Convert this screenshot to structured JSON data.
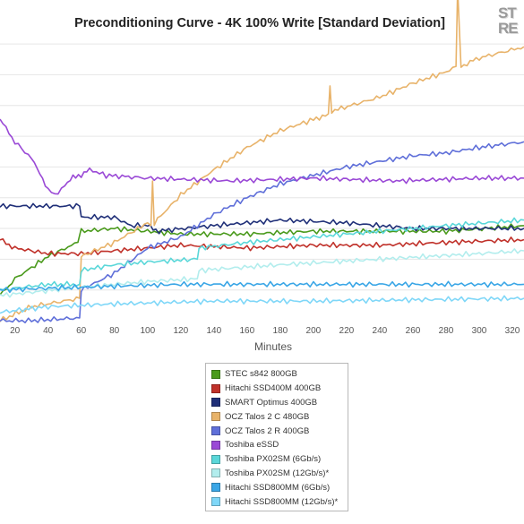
{
  "chart_data": {
    "type": "line",
    "title": "Preconditioning Curve - 4K 100% Write [Standard Deviation]",
    "xlabel": "Minutes",
    "ylabel": "",
    "xlim": [
      11,
      327
    ],
    "ylim": [
      0,
      10
    ],
    "x_ticks": [
      20,
      40,
      60,
      80,
      100,
      120,
      140,
      160,
      180,
      200,
      220,
      240,
      260,
      280,
      300,
      320
    ],
    "grid": true,
    "legend_position": "bottom",
    "series": [
      {
        "name": "STEC s842 800GB",
        "color": "#4a9a1c",
        "points": [
          [
            11,
            0.9
          ],
          [
            20,
            1.5
          ],
          [
            40,
            2.3
          ],
          [
            58,
            2.8
          ],
          [
            60,
            3.2
          ],
          [
            80,
            3.3
          ],
          [
            120,
            3.1
          ],
          [
            160,
            3.1
          ],
          [
            200,
            3.2
          ],
          [
            240,
            3.2
          ],
          [
            280,
            3.2
          ],
          [
            327,
            3.4
          ]
        ]
      },
      {
        "name": "Hitachi SSD400M 400GB",
        "color": "#c0312a",
        "points": [
          [
            11,
            2.9
          ],
          [
            20,
            2.6
          ],
          [
            40,
            2.4
          ],
          [
            60,
            2.4
          ],
          [
            80,
            2.5
          ],
          [
            120,
            2.7
          ],
          [
            160,
            2.6
          ],
          [
            200,
            2.7
          ],
          [
            240,
            2.7
          ],
          [
            280,
            2.8
          ],
          [
            327,
            2.9
          ]
        ]
      },
      {
        "name": "SMART Optimus 400GB",
        "color": "#1f2f78",
        "points": [
          [
            11,
            4.1
          ],
          [
            59,
            4.1
          ],
          [
            60,
            3.7
          ],
          [
            80,
            3.7
          ],
          [
            90,
            3.4
          ],
          [
            100,
            3.4
          ],
          [
            105,
            3.2
          ],
          [
            140,
            3.4
          ],
          [
            180,
            3.6
          ],
          [
            220,
            3.5
          ],
          [
            260,
            3.3
          ],
          [
            300,
            3.3
          ],
          [
            327,
            3.3
          ]
        ]
      },
      {
        "name": "OCZ Talos 2 C 480GB",
        "color": "#e8b36a",
        "points": [
          [
            11,
            0.0
          ],
          [
            30,
            0.5
          ],
          [
            59,
            0.8
          ],
          [
            60,
            2.3
          ],
          [
            80,
            2.8
          ],
          [
            100,
            3.5
          ],
          [
            102,
            3.4
          ],
          [
            103,
            5.0
          ],
          [
            104,
            3.5
          ],
          [
            120,
            4.5
          ],
          [
            140,
            5.4
          ],
          [
            160,
            6.2
          ],
          [
            180,
            6.8
          ],
          [
            200,
            7.2
          ],
          [
            209,
            7.4
          ],
          [
            210,
            8.4
          ],
          [
            211,
            7.5
          ],
          [
            240,
            8.0
          ],
          [
            260,
            8.5
          ],
          [
            280,
            8.9
          ],
          [
            286,
            9.1
          ],
          [
            287,
            11.9
          ],
          [
            289,
            9.1
          ],
          [
            300,
            9.4
          ],
          [
            327,
            9.8
          ]
        ]
      },
      {
        "name": "OCZ Talos 2 R 400GB",
        "color": "#5f6fd9",
        "points": [
          [
            11,
            0.0
          ],
          [
            30,
            0.0
          ],
          [
            59,
            0.1
          ],
          [
            60,
            1.1
          ],
          [
            80,
            1.7
          ],
          [
            100,
            2.6
          ],
          [
            120,
            3.0
          ],
          [
            140,
            3.8
          ],
          [
            160,
            4.4
          ],
          [
            180,
            4.9
          ],
          [
            200,
            5.2
          ],
          [
            220,
            5.5
          ],
          [
            240,
            5.7
          ],
          [
            260,
            5.9
          ],
          [
            280,
            6.0
          ],
          [
            300,
            6.2
          ],
          [
            327,
            6.4
          ]
        ]
      },
      {
        "name": "Toshiba eSSD",
        "color": "#9a49d6",
        "points": [
          [
            11,
            7.2
          ],
          [
            20,
            6.4
          ],
          [
            30,
            5.8
          ],
          [
            35,
            5.3
          ],
          [
            40,
            4.7
          ],
          [
            44,
            4.5
          ],
          [
            50,
            4.8
          ],
          [
            55,
            5.2
          ],
          [
            60,
            5.2
          ],
          [
            65,
            5.4
          ],
          [
            75,
            5.2
          ],
          [
            100,
            5.1
          ],
          [
            150,
            5.0
          ],
          [
            200,
            5.1
          ],
          [
            250,
            5.0
          ],
          [
            300,
            5.1
          ],
          [
            327,
            5.1
          ]
        ]
      },
      {
        "name": "Toshiba PX02SM (6Gb/s)",
        "color": "#5ad7d9",
        "points": [
          [
            11,
            1.1
          ],
          [
            40,
            1.3
          ],
          [
            59,
            1.3
          ],
          [
            60,
            1.8
          ],
          [
            80,
            2.0
          ],
          [
            100,
            2.1
          ],
          [
            130,
            2.2
          ],
          [
            131,
            2.6
          ],
          [
            160,
            2.8
          ],
          [
            200,
            3.0
          ],
          [
            240,
            3.2
          ],
          [
            280,
            3.4
          ],
          [
            327,
            3.6
          ]
        ]
      },
      {
        "name": "Toshiba PX02SM (12Gb/s)*",
        "color": "#b2eded",
        "points": [
          [
            11,
            0.9
          ],
          [
            60,
            1.2
          ],
          [
            100,
            1.4
          ],
          [
            130,
            1.5
          ],
          [
            131,
            1.8
          ],
          [
            180,
            2.0
          ],
          [
            240,
            2.2
          ],
          [
            300,
            2.4
          ],
          [
            327,
            2.5
          ]
        ]
      },
      {
        "name": "Hitachi SSD800MM (6Gb/s)",
        "color": "#3aa6e6",
        "points": [
          [
            11,
            1.1
          ],
          [
            60,
            1.2
          ],
          [
            120,
            1.3
          ],
          [
            200,
            1.3
          ],
          [
            327,
            1.3
          ]
        ]
      },
      {
        "name": "Hitachi SSD800MM (12Gb/s)*",
        "color": "#7fd7f8",
        "points": [
          [
            11,
            0.3
          ],
          [
            40,
            0.5
          ],
          [
            80,
            0.6
          ],
          [
            140,
            0.7
          ],
          [
            200,
            0.7
          ],
          [
            327,
            0.8
          ]
        ]
      }
    ]
  },
  "watermark": {
    "line1": "ST",
    "line2": "RE"
  }
}
